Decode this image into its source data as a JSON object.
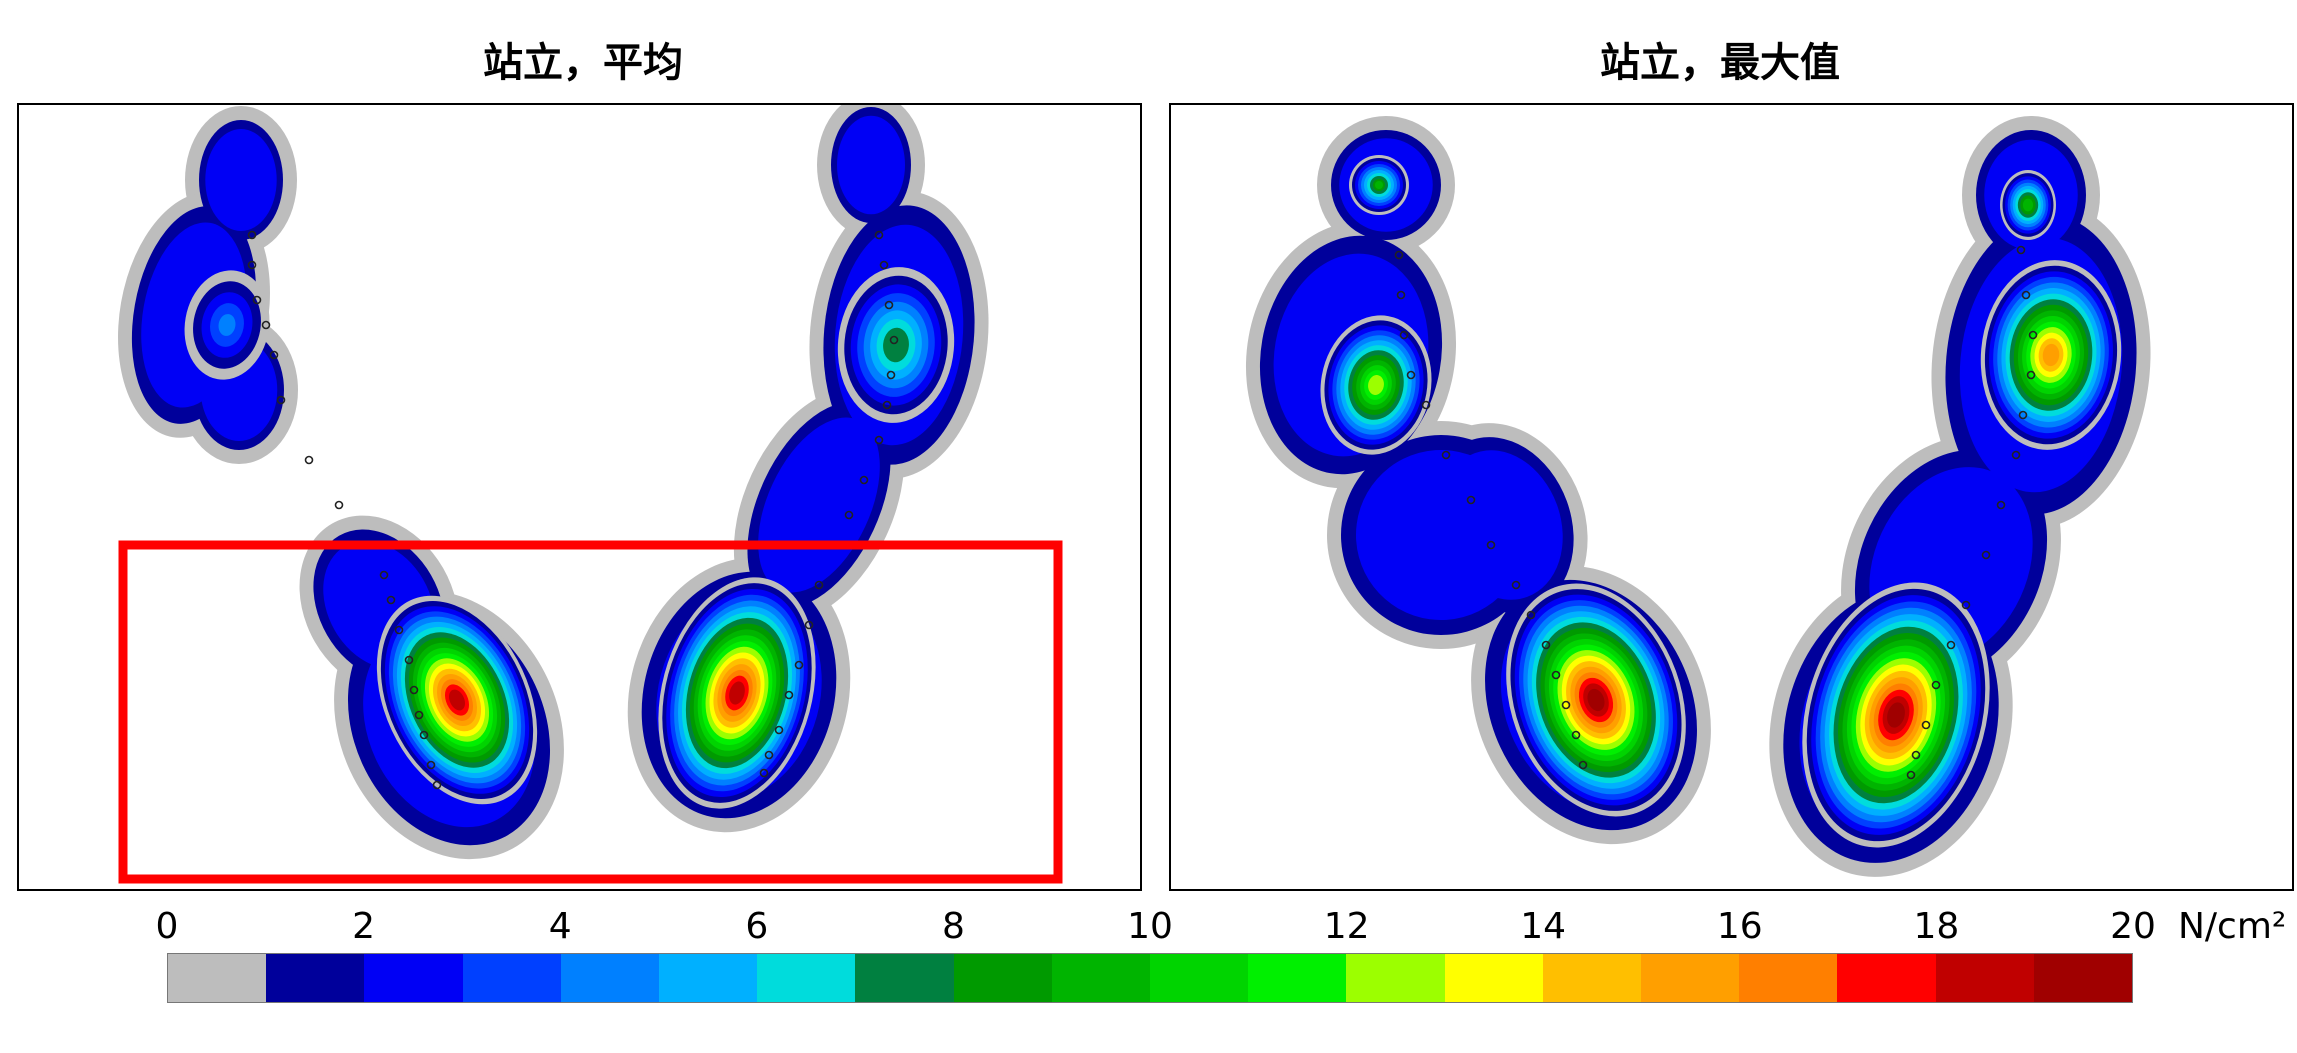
{
  "chart_data": [
    {
      "type": "heatmap",
      "title": "站立，平均",
      "highlight_box": true,
      "peak_regions": [
        {
          "location": "left heel",
          "value_range": [
            18,
            19
          ]
        },
        {
          "location": "right heel",
          "value_range": [
            18,
            19
          ]
        },
        {
          "location": "right forefoot",
          "value_range": [
            7,
            8
          ]
        }
      ]
    },
    {
      "type": "heatmap",
      "title": "站立，最大值",
      "highlight_box": false,
      "peak_regions": [
        {
          "location": "left heel",
          "value_range": [
            19,
            20
          ]
        },
        {
          "location": "right heel",
          "value_range": [
            19,
            20
          ]
        },
        {
          "location": "right forefoot",
          "value_range": [
            15,
            16
          ]
        }
      ]
    }
  ],
  "colorbar": {
    "min": 0,
    "max": 20,
    "step": 1,
    "unit": "N/cm²",
    "tick_labels": [
      "0",
      "2",
      "4",
      "6",
      "8",
      "10",
      "12",
      "14",
      "16",
      "18",
      "20"
    ],
    "colors": [
      "#bdbdbd",
      "#00009b",
      "#0000f5",
      "#0040ff",
      "#0080ff",
      "#00b0ff",
      "#00dcdc",
      "#008040",
      "#009a00",
      "#00b400",
      "#00d400",
      "#00f000",
      "#9cff00",
      "#ffff00",
      "#ffbf00",
      "#ff9f00",
      "#ff7f00",
      "#ff0000",
      "#c00000",
      "#a00000"
    ]
  }
}
